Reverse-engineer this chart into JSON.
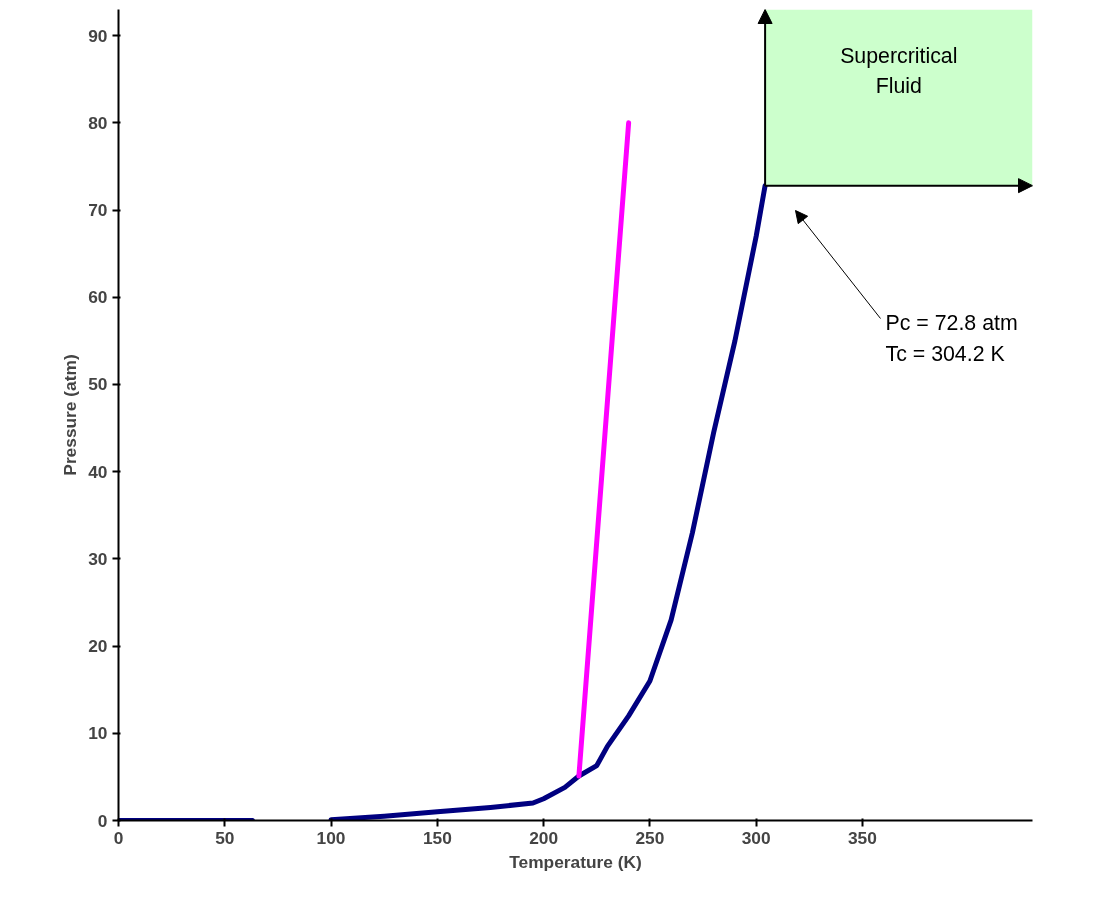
{
  "chart_data": {
    "type": "line",
    "xlabel": "Temperature (K)",
    "ylabel": "Pressure (atm)",
    "xlim": [
      0,
      430
    ],
    "ylim": [
      0,
      93
    ],
    "xticks": [
      0,
      50,
      100,
      150,
      200,
      250,
      300,
      350
    ],
    "yticks": [
      0,
      10,
      20,
      30,
      40,
      50,
      60,
      70,
      80,
      90
    ],
    "grid": false,
    "series": [
      {
        "color": "#000080",
        "x": [
          0,
          30,
          63,
          88,
          100,
          125,
          150,
          175,
          195,
          200,
          210,
          216.6,
          225,
          230,
          240,
          250,
          260,
          270,
          280,
          290,
          300,
          304.2
        ],
        "values": [
          0,
          0,
          0,
          null,
          0.1,
          0.5,
          1,
          1.5,
          2,
          2.5,
          3.8,
          5.1,
          6.3,
          8.5,
          12,
          16,
          23,
          33,
          44.5,
          55,
          67,
          72.8
        ]
      },
      {
        "color": "#ff00ff",
        "x": [
          216.6,
          240
        ],
        "values": [
          5.1,
          80
        ]
      }
    ],
    "bands": [
      {
        "axis": "y",
        "from": 72.8,
        "to": 93,
        "label": "Supercritical\nFluid",
        "color": "#ccffcc"
      }
    ],
    "annotations": [
      "Pc = 72.8 atm\nTc = 304.2 K"
    ]
  }
}
